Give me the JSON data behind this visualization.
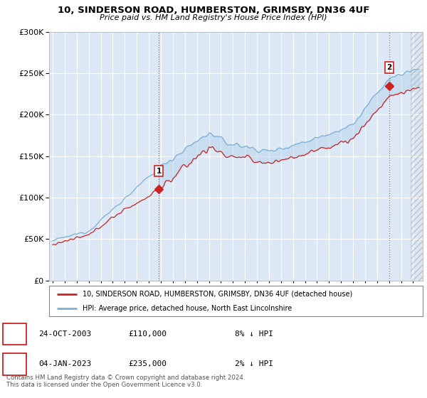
{
  "title": "10, SINDERSON ROAD, HUMBERSTON, GRIMSBY, DN36 4UF",
  "subtitle": "Price paid vs. HM Land Registry's House Price Index (HPI)",
  "background_color": "#ffffff",
  "plot_bg_color": "#dce8f5",
  "grid_color": "#ffffff",
  "sale1_date_x": 2003.82,
  "sale1_price": 110000,
  "sale2_date_x": 2023.02,
  "sale2_price": 235000,
  "legend_line1": "10, SINDERSON ROAD, HUMBERSTON, GRIMSBY, DN36 4UF (detached house)",
  "legend_line2": "HPI: Average price, detached house, North East Lincolnshire",
  "sale1_label": "1",
  "sale2_label": "2",
  "sale1_info": "24-OCT-2003",
  "sale1_amount": "£110,000",
  "sale1_hpi": "8% ↓ HPI",
  "sale2_info": "04-JAN-2023",
  "sale2_amount": "£235,000",
  "sale2_hpi": "2% ↓ HPI",
  "footer": "Contains HM Land Registry data © Crown copyright and database right 2024.\nThis data is licensed under the Open Government Licence v3.0.",
  "hpi_color": "#7bafd4",
  "price_color": "#cc2222",
  "vline_color": "#cc3333",
  "ylim": [
    0,
    300000
  ],
  "xlim_start": 1994.7,
  "xlim_end": 2025.8
}
